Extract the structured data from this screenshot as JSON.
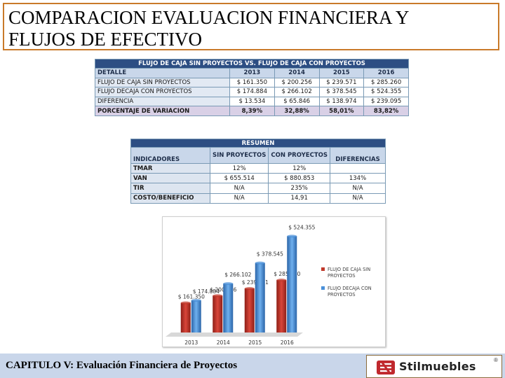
{
  "title": {
    "line1": "COMPARACION EVALUACION FINANCIERA Y",
    "line2": "FLUJOS DE EFECTIVO"
  },
  "cashflow_table": {
    "caption": "FLUJO DE CAJA SIN PROYECTOS VS. FLUJO DE CAJA CON PROYECTOS",
    "header": [
      "DETALLE",
      "2013",
      "2014",
      "2015",
      "2016"
    ],
    "rows": [
      [
        "FLUJO DE CAJA SIN PROYECTOS",
        "$ 161.350",
        "$ 200.256",
        "$ 239.571",
        "$ 285.260"
      ],
      [
        "FLUJO DECAJA CON PROYECTOS",
        "$ 174.884",
        "$ 266.102",
        "$ 378.545",
        "$ 524.355"
      ],
      [
        "DIFERENCIA",
        "$ 13.534",
        "$ 65.846",
        "$ 138.974",
        "$ 239.095"
      ],
      [
        "PORCENTAJE DE VARIACION",
        "8,39%",
        "32,88%",
        "58,01%",
        "83,82%"
      ]
    ]
  },
  "summary_table": {
    "caption": "RESUMEN",
    "header": [
      "INDICADORES",
      "SIN PROYECTOS",
      "CON PROYECTOS",
      "DIFERENCIAS"
    ],
    "rows": [
      [
        "TMAR",
        "12%",
        "12%",
        ""
      ],
      [
        "VAN",
        "$ 655.514",
        "$ 880.853",
        "134%"
      ],
      [
        "TIR",
        "N/A",
        "235%",
        "N/A"
      ],
      [
        "COSTO/BENEFICIO",
        "N/A",
        "14,91",
        "N/A"
      ]
    ]
  },
  "chart_data": {
    "type": "bar",
    "categories": [
      "2013",
      "2014",
      "2015",
      "2016"
    ],
    "series": [
      {
        "name": "FLUJO DE CAJA SIN PROYECTOS",
        "values": [
          161350,
          200256,
          239571,
          285260
        ],
        "labels": [
          "$ 161.350",
          "$ 200.256",
          "$ 239.571",
          "$ 285.260"
        ],
        "color": "#c0392b"
      },
      {
        "name": "FLUJO DECAJA CON PROYECTOS",
        "values": [
          174884,
          266102,
          378545,
          524355
        ],
        "labels": [
          "$ 174.884",
          "$ 266.102",
          "$ 378.545",
          "$ 524.355"
        ],
        "color": "#4a90d9"
      }
    ],
    "ylim": [
      0,
      560000
    ],
    "grid": false,
    "legend": "right"
  },
  "footer": {
    "text": "CAPITULO V: Evaluación Financiera de Proyectos"
  },
  "logo": {
    "text": "Stilmuebles",
    "reg": "®",
    "colors": {
      "red": "#c0282d"
    }
  }
}
